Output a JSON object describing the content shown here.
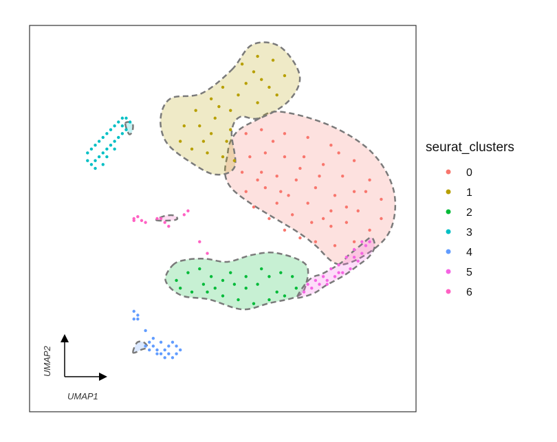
{
  "chart_data": {
    "type": "scatter",
    "title": "",
    "xlabel": "UMAP1",
    "ylabel": "UMAP2",
    "grid": false,
    "legend": {
      "title": "seurat_clusters",
      "placement": "right"
    },
    "xlim": [
      0,
      100
    ],
    "ylim": [
      0,
      100
    ],
    "series": [
      {
        "name": "0",
        "color": "#F8766D",
        "hull": [
          [
            58.5,
            75.4
          ],
          [
            64.5,
            77.7
          ],
          [
            77.5,
            74.2
          ],
          [
            88.3,
            67.4
          ],
          [
            94.0,
            58.1
          ],
          [
            94.0,
            48.8
          ],
          [
            89.6,
            42.5
          ],
          [
            80.4,
            38.1
          ],
          [
            73.9,
            43.1
          ],
          [
            69.7,
            46.3
          ],
          [
            52.3,
            57.8
          ],
          [
            51.3,
            67.1
          ],
          [
            53.5,
            72.3
          ]
        ],
        "points": [
          [
            56,
            72
          ],
          [
            60,
            73
          ],
          [
            66,
            72
          ],
          [
            72,
            71
          ],
          [
            78,
            69
          ],
          [
            84,
            65
          ],
          [
            88,
            60
          ],
          [
            91,
            55
          ],
          [
            91,
            50
          ],
          [
            88,
            47
          ],
          [
            84,
            44
          ],
          [
            79,
            43
          ],
          [
            74,
            44
          ],
          [
            70,
            45
          ],
          [
            66,
            47
          ],
          [
            62,
            50
          ],
          [
            58,
            53
          ],
          [
            56,
            57
          ],
          [
            55,
            62
          ],
          [
            57,
            66
          ],
          [
            61,
            67
          ],
          [
            66,
            66
          ],
          [
            71,
            66
          ],
          [
            76,
            64
          ],
          [
            81,
            61
          ],
          [
            84,
            57
          ],
          [
            85,
            52
          ],
          [
            82,
            49
          ],
          [
            78,
            48
          ],
          [
            73,
            49
          ],
          [
            68,
            51
          ],
          [
            64,
            54
          ],
          [
            61,
            58
          ],
          [
            60,
            62
          ],
          [
            64,
            61
          ],
          [
            69,
            60
          ],
          [
            74,
            58
          ],
          [
            79,
            56
          ],
          [
            78,
            52
          ],
          [
            72,
            54
          ],
          [
            67,
            56
          ],
          [
            70,
            63
          ],
          [
            75,
            61
          ],
          [
            82,
            53
          ],
          [
            63,
            70
          ],
          [
            80,
            67
          ],
          [
            87,
            57
          ],
          [
            59,
            60
          ],
          [
            65,
            57
          ],
          [
            76,
            50
          ]
        ]
      },
      {
        "name": "1",
        "color": "#B79F00",
        "hull": [
          [
            52.3,
            88.5
          ],
          [
            57.6,
            95.0
          ],
          [
            64.8,
            94.5
          ],
          [
            69.9,
            87.0
          ],
          [
            67.0,
            80.4
          ],
          [
            59.5,
            76.0
          ],
          [
            54.4,
            76.3
          ],
          [
            52.3,
            72.4
          ],
          [
            53.1,
            63.5
          ],
          [
            48.1,
            61.4
          ],
          [
            41.8,
            64.5
          ],
          [
            35.5,
            69.6
          ],
          [
            33.9,
            75.9
          ],
          [
            36.5,
            81.1
          ],
          [
            44.5,
            82.4
          ]
        ],
        "points": [
          [
            55,
            90
          ],
          [
            59,
            92
          ],
          [
            63,
            91
          ],
          [
            66,
            87
          ],
          [
            64,
            82
          ],
          [
            59,
            80
          ],
          [
            54,
            82
          ],
          [
            50,
            84
          ],
          [
            47,
            81
          ],
          [
            43,
            78
          ],
          [
            40,
            74
          ],
          [
            39,
            70
          ],
          [
            42,
            68
          ],
          [
            46,
            67
          ],
          [
            50,
            66
          ],
          [
            53,
            65
          ],
          [
            51,
            70
          ],
          [
            47,
            72
          ],
          [
            44,
            74
          ],
          [
            48,
            76
          ],
          [
            52,
            78
          ],
          [
            56,
            85
          ],
          [
            60,
            86
          ],
          [
            62,
            84
          ],
          [
            49,
            79
          ],
          [
            45,
            70
          ],
          [
            52,
            73
          ],
          [
            58,
            88
          ]
        ]
      },
      {
        "name": "2",
        "color": "#00BA38",
        "hull": [
          [
            37.0,
            37.9
          ],
          [
            40.3,
            39.3
          ],
          [
            45.5,
            39.6
          ],
          [
            51.2,
            38.8
          ],
          [
            57.6,
            40.6
          ],
          [
            63.9,
            41.1
          ],
          [
            71.4,
            38.2
          ],
          [
            71.5,
            32.9
          ],
          [
            69.3,
            29.9
          ],
          [
            62.0,
            28.1
          ],
          [
            55.0,
            26.5
          ],
          [
            46.4,
            29.1
          ],
          [
            39.3,
            30.1
          ],
          [
            35.2,
            33.9
          ]
        ],
        "points": [
          [
            38,
            34
          ],
          [
            41,
            36
          ],
          [
            44,
            37
          ],
          [
            47,
            35
          ],
          [
            50,
            34
          ],
          [
            53,
            33
          ],
          [
            56,
            32
          ],
          [
            59,
            33
          ],
          [
            62,
            35
          ],
          [
            65,
            36
          ],
          [
            68,
            35
          ],
          [
            69,
            32
          ],
          [
            66,
            30
          ],
          [
            62,
            29
          ],
          [
            58,
            28
          ],
          [
            54,
            29
          ],
          [
            50,
            30
          ],
          [
            46,
            31
          ],
          [
            42,
            31
          ],
          [
            39,
            32
          ],
          [
            45,
            33
          ],
          [
            52,
            36
          ],
          [
            60,
            37
          ],
          [
            64,
            31
          ],
          [
            56,
            35
          ],
          [
            48,
            32
          ]
        ]
      },
      {
        "name": "3",
        "color": "#00BFC4",
        "hull": [
          [
            24.8,
            74.7
          ],
          [
            26.6,
            74.7
          ],
          [
            26.6,
            72.6
          ],
          [
            25.7,
            71.9
          ]
        ],
        "points": [
          [
            15,
            67
          ],
          [
            16,
            68
          ],
          [
            17,
            69
          ],
          [
            18,
            70
          ],
          [
            19,
            71
          ],
          [
            20,
            72
          ],
          [
            21,
            73
          ],
          [
            22,
            74
          ],
          [
            23,
            75
          ],
          [
            24,
            76
          ],
          [
            25,
            76
          ],
          [
            26,
            75
          ],
          [
            25,
            73
          ],
          [
            24,
            72
          ],
          [
            23,
            71
          ],
          [
            22,
            70
          ],
          [
            21,
            69
          ],
          [
            20,
            68
          ],
          [
            19,
            67
          ],
          [
            18,
            66
          ],
          [
            17,
            65
          ],
          [
            16,
            64
          ],
          [
            17,
            63
          ],
          [
            19,
            64
          ],
          [
            20,
            66
          ],
          [
            22,
            68
          ],
          [
            24,
            74
          ],
          [
            15,
            65
          ]
        ]
      },
      {
        "name": "4",
        "color": "#619CFF",
        "hull": [
          [
            26.8,
            15.3
          ],
          [
            27.8,
            17.9
          ],
          [
            29.5,
            18.0
          ],
          [
            30.5,
            16.7
          ],
          [
            29.0,
            16.1
          ]
        ],
        "points": [
          [
            27,
            26
          ],
          [
            28,
            25
          ],
          [
            27,
            24
          ],
          [
            30,
            21
          ],
          [
            31,
            18
          ],
          [
            32,
            17
          ],
          [
            33,
            16
          ],
          [
            34,
            15
          ],
          [
            35,
            16
          ],
          [
            36,
            17
          ],
          [
            37,
            18
          ],
          [
            38,
            17
          ],
          [
            39,
            16
          ],
          [
            38,
            15
          ],
          [
            37,
            14
          ],
          [
            35,
            14
          ],
          [
            33,
            15
          ],
          [
            31,
            16
          ],
          [
            30,
            17
          ],
          [
            32,
            19
          ],
          [
            34,
            18
          ],
          [
            36,
            15
          ],
          [
            28,
            24
          ]
        ]
      },
      {
        "name": "5",
        "color": "#F564E3",
        "hull": [
          [
            69.3,
            29.8
          ],
          [
            71.6,
            33.4
          ],
          [
            73.6,
            35.0
          ],
          [
            75.5,
            35.6
          ],
          [
            78.5,
            37.2
          ],
          [
            80.1,
            38.2
          ],
          [
            81.3,
            39.1
          ],
          [
            82.3,
            40.3
          ],
          [
            83.5,
            41.3
          ],
          [
            85.8,
            43.2
          ],
          [
            88.4,
            45.1
          ],
          [
            89.3,
            42.8
          ],
          [
            87.9,
            40.2
          ],
          [
            85.0,
            37.9
          ],
          [
            81.4,
            35.3
          ],
          [
            76.7,
            32.7
          ],
          [
            74.0,
            30.9
          ],
          [
            71.0,
            29.8
          ]
        ],
        "points": [
          [
            71,
            31
          ],
          [
            73,
            32
          ],
          [
            75,
            33
          ],
          [
            77,
            34
          ],
          [
            79,
            35
          ],
          [
            81,
            36
          ],
          [
            83,
            37
          ],
          [
            85,
            39
          ],
          [
            86,
            41
          ],
          [
            87,
            43
          ],
          [
            88,
            44
          ],
          [
            86,
            44
          ],
          [
            84,
            42
          ],
          [
            82,
            40
          ],
          [
            80,
            38
          ],
          [
            78,
            37
          ],
          [
            76,
            35
          ],
          [
            74,
            34
          ],
          [
            72,
            33
          ],
          [
            80,
            36
          ],
          [
            84,
            40
          ],
          [
            77,
            33
          ]
        ]
      },
      {
        "name": "6",
        "color": "#FF61C3",
        "hull": [
          [
            32.8,
            49.6
          ],
          [
            36.4,
            49.5
          ],
          [
            38.2,
            49.9
          ],
          [
            37.4,
            50.8
          ],
          [
            35.0,
            50.7
          ]
        ],
        "points": [
          [
            27,
            50
          ],
          [
            28,
            50.5
          ],
          [
            29,
            49.5
          ],
          [
            30,
            49
          ],
          [
            33,
            50
          ],
          [
            34,
            50
          ],
          [
            35,
            49
          ],
          [
            36,
            48
          ],
          [
            40,
            51
          ],
          [
            41,
            52
          ],
          [
            46,
            41
          ],
          [
            44,
            44
          ],
          [
            27,
            49.5
          ]
        ]
      }
    ]
  },
  "legend_labels": [
    "0",
    "1",
    "2",
    "3",
    "4",
    "5",
    "6"
  ],
  "axis_titles": {
    "x": "UMAP1",
    "y": "UMAP2"
  }
}
